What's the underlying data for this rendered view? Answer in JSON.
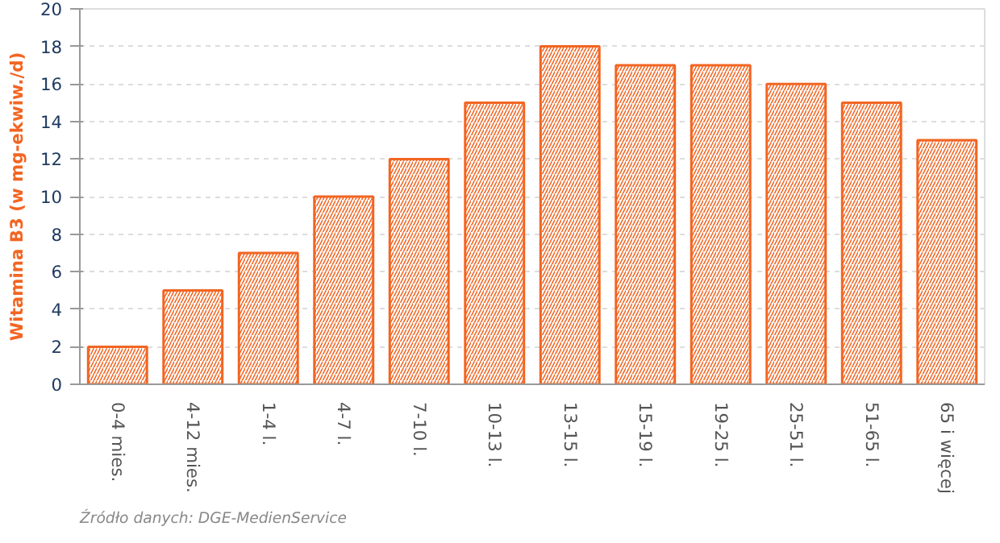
{
  "chart_data": {
    "type": "bar",
    "ylabel": "Witamina B3 (w mg-ekwiw./d)",
    "categories": [
      "0-4 mies.",
      "4-12 mies.",
      "1-4 l.",
      "4-7 l.",
      "7-10 l.",
      "10-13 l.",
      "13-15 l.",
      "15-19 l.",
      "19-25 l.",
      "25-51 l.",
      "51-65 l.",
      "65 i więcej"
    ],
    "values": [
      2,
      5,
      7,
      10,
      12,
      15,
      18,
      17,
      17,
      16,
      15,
      13
    ],
    "color": "#f26522",
    "ylim": [
      0,
      20
    ],
    "yticks": [
      0,
      2,
      4,
      6,
      8,
      10,
      12,
      14,
      16,
      18,
      20
    ],
    "grid": "y",
    "annotations": [
      "Źródło danych:  DGE-MedienService"
    ]
  }
}
